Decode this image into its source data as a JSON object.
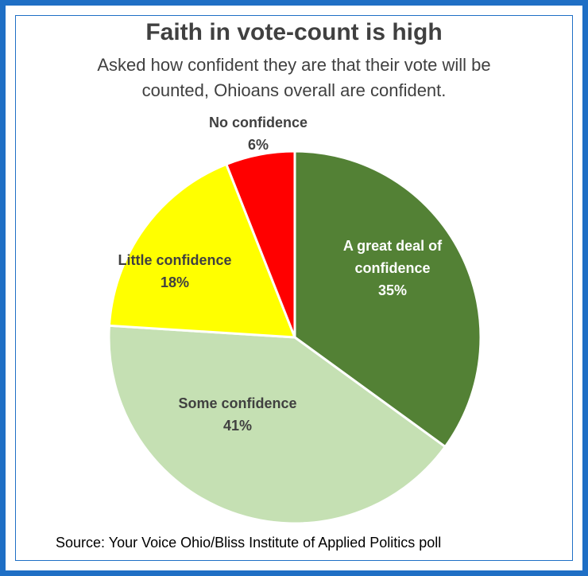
{
  "title": "Faith in vote-count is high",
  "subtitle": "Asked how confident they are that their vote will be counted, Ohioans overall are confident.",
  "source": "Source: Your Voice Ohio/Bliss Institute of Applied Politics poll",
  "chart_data": {
    "type": "pie",
    "title": "Faith in vote-count is high",
    "start": "12 o'clock",
    "direction": "clockwise",
    "slices": [
      {
        "label": "A great deal of confidence",
        "label_lines": [
          "A great deal of",
          "confidence"
        ],
        "value": 35,
        "value_label": "35%",
        "color": "#538135"
      },
      {
        "label": "Some confidence",
        "label_lines": [
          "Some confidence"
        ],
        "value": 41,
        "value_label": "41%",
        "color": "#c5e0b3"
      },
      {
        "label": "Little confidence",
        "label_lines": [
          "Little confidence"
        ],
        "value": 18,
        "value_label": "18%",
        "color": "#ffff00"
      },
      {
        "label": "No confidence",
        "label_lines": [
          "No confidence"
        ],
        "value": 6,
        "value_label": "6%",
        "color": "#ff0000"
      }
    ]
  }
}
